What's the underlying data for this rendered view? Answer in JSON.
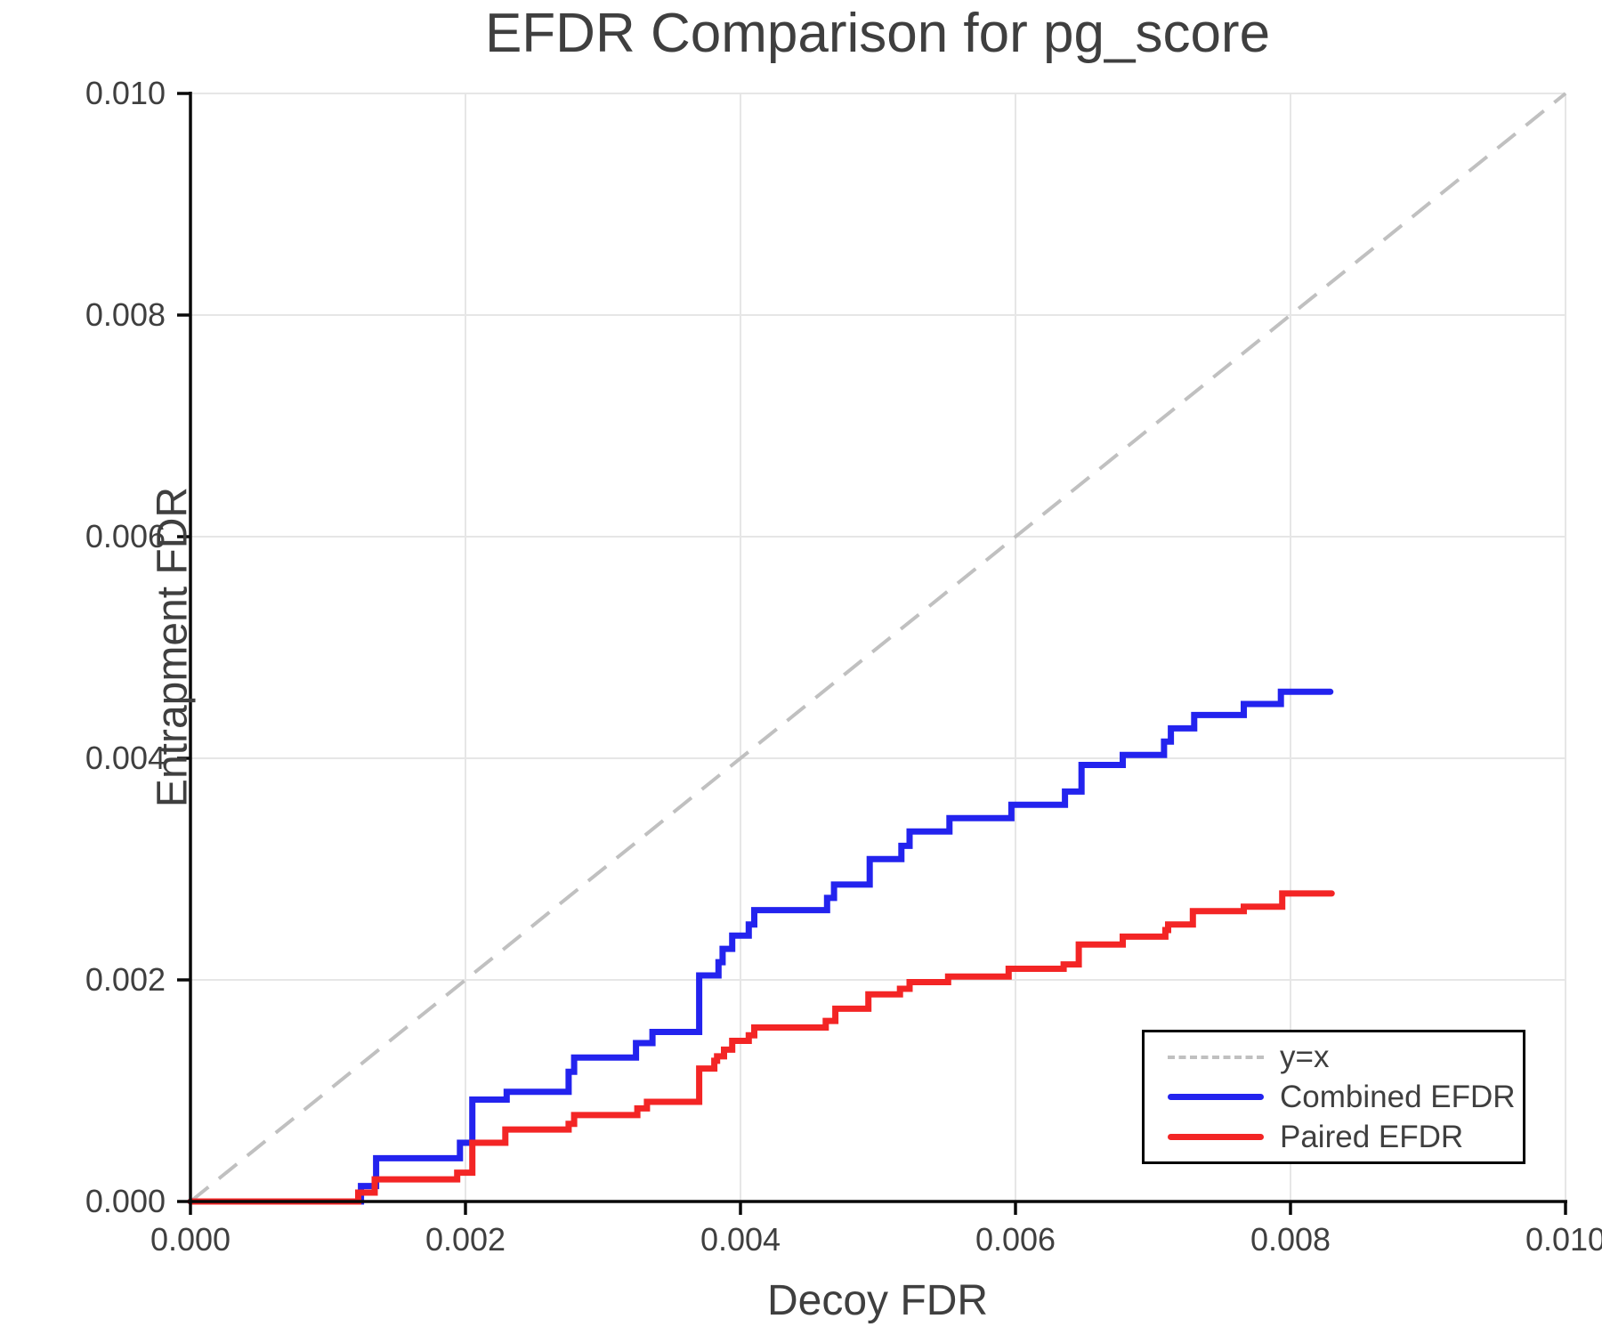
{
  "chart_data": {
    "type": "line",
    "title": "EFDR Comparison for pg_score",
    "xlabel": "Decoy FDR",
    "ylabel": "Entrapment FDR",
    "xlim": [
      0.0,
      0.01
    ],
    "ylim": [
      0.0,
      0.01
    ],
    "xticks": [
      0.0,
      0.002,
      0.004,
      0.006,
      0.008,
      0.01
    ],
    "yticks": [
      0.0,
      0.002,
      0.004,
      0.006,
      0.008,
      0.01
    ],
    "tick_decimals": 3,
    "grid": true,
    "legend_position": "lower right",
    "colors": {
      "text": "#3f3f3f",
      "spine": "#0a0a0a",
      "grid": "#e6e6e6",
      "identity": "#c0c0c0",
      "combined": "#2323ee",
      "paired": "#f32525"
    },
    "series": [
      {
        "name": "y=x",
        "kind": "identity-line",
        "style": "dashed",
        "color": "#c0c0c0",
        "x": [
          0.0,
          0.01
        ],
        "y": [
          0.0,
          0.01
        ]
      },
      {
        "name": "Combined EFDR",
        "kind": "step",
        "color": "#2323ee",
        "start": [
          0.0,
          0.0
        ],
        "end_x": 0.00829,
        "steps": [
          [
            0.00124,
            0.00014
          ],
          [
            0.00135,
            0.00039
          ],
          [
            0.00196,
            0.00053
          ],
          [
            0.00205,
            0.00092
          ],
          [
            0.0023,
            0.00099
          ],
          [
            0.00275,
            0.00117
          ],
          [
            0.00279,
            0.0013
          ],
          [
            0.00324,
            0.00143
          ],
          [
            0.00336,
            0.00153
          ],
          [
            0.0037,
            0.00204
          ],
          [
            0.00384,
            0.00216
          ],
          [
            0.00387,
            0.00228
          ],
          [
            0.00394,
            0.0024
          ],
          [
            0.00406,
            0.0025
          ],
          [
            0.0041,
            0.00263
          ],
          [
            0.00463,
            0.00274
          ],
          [
            0.00468,
            0.00286
          ],
          [
            0.00494,
            0.00309
          ],
          [
            0.00517,
            0.00321
          ],
          [
            0.00523,
            0.00334
          ],
          [
            0.00552,
            0.00346
          ],
          [
            0.00597,
            0.00358
          ],
          [
            0.00636,
            0.0037
          ],
          [
            0.00648,
            0.00394
          ],
          [
            0.00678,
            0.00403
          ],
          [
            0.00708,
            0.00415
          ],
          [
            0.00713,
            0.00427
          ],
          [
            0.0073,
            0.00439
          ],
          [
            0.00766,
            0.00449
          ],
          [
            0.00793,
            0.0046
          ]
        ]
      },
      {
        "name": "Paired EFDR",
        "kind": "step",
        "color": "#f32525",
        "start": [
          0.0,
          0.0
        ],
        "end_x": 0.0083,
        "steps": [
          [
            0.00122,
            8e-05
          ],
          [
            0.00134,
            0.0002
          ],
          [
            0.00194,
            0.00026
          ],
          [
            0.00205,
            0.00053
          ],
          [
            0.00229,
            0.00065
          ],
          [
            0.00275,
            0.0007
          ],
          [
            0.00279,
            0.00078
          ],
          [
            0.00325,
            0.00084
          ],
          [
            0.00332,
            0.0009
          ],
          [
            0.0037,
            0.0012
          ],
          [
            0.00381,
            0.00127
          ],
          [
            0.00383,
            0.00131
          ],
          [
            0.00388,
            0.00137
          ],
          [
            0.00394,
            0.00145
          ],
          [
            0.00406,
            0.0015
          ],
          [
            0.0041,
            0.00157
          ],
          [
            0.00462,
            0.00163
          ],
          [
            0.00469,
            0.00174
          ],
          [
            0.00493,
            0.00187
          ],
          [
            0.00516,
            0.00192
          ],
          [
            0.00523,
            0.00198
          ],
          [
            0.00551,
            0.00203
          ],
          [
            0.00595,
            0.0021
          ],
          [
            0.00635,
            0.00214
          ],
          [
            0.00646,
            0.00232
          ],
          [
            0.00678,
            0.00239
          ],
          [
            0.00709,
            0.00245
          ],
          [
            0.00711,
            0.0025
          ],
          [
            0.00729,
            0.00262
          ],
          [
            0.00766,
            0.00266
          ],
          [
            0.00794,
            0.00278
          ]
        ]
      }
    ],
    "legend": {
      "items": [
        {
          "label": "y=x"
        },
        {
          "label": "Combined EFDR"
        },
        {
          "label": "Paired EFDR"
        }
      ]
    }
  }
}
